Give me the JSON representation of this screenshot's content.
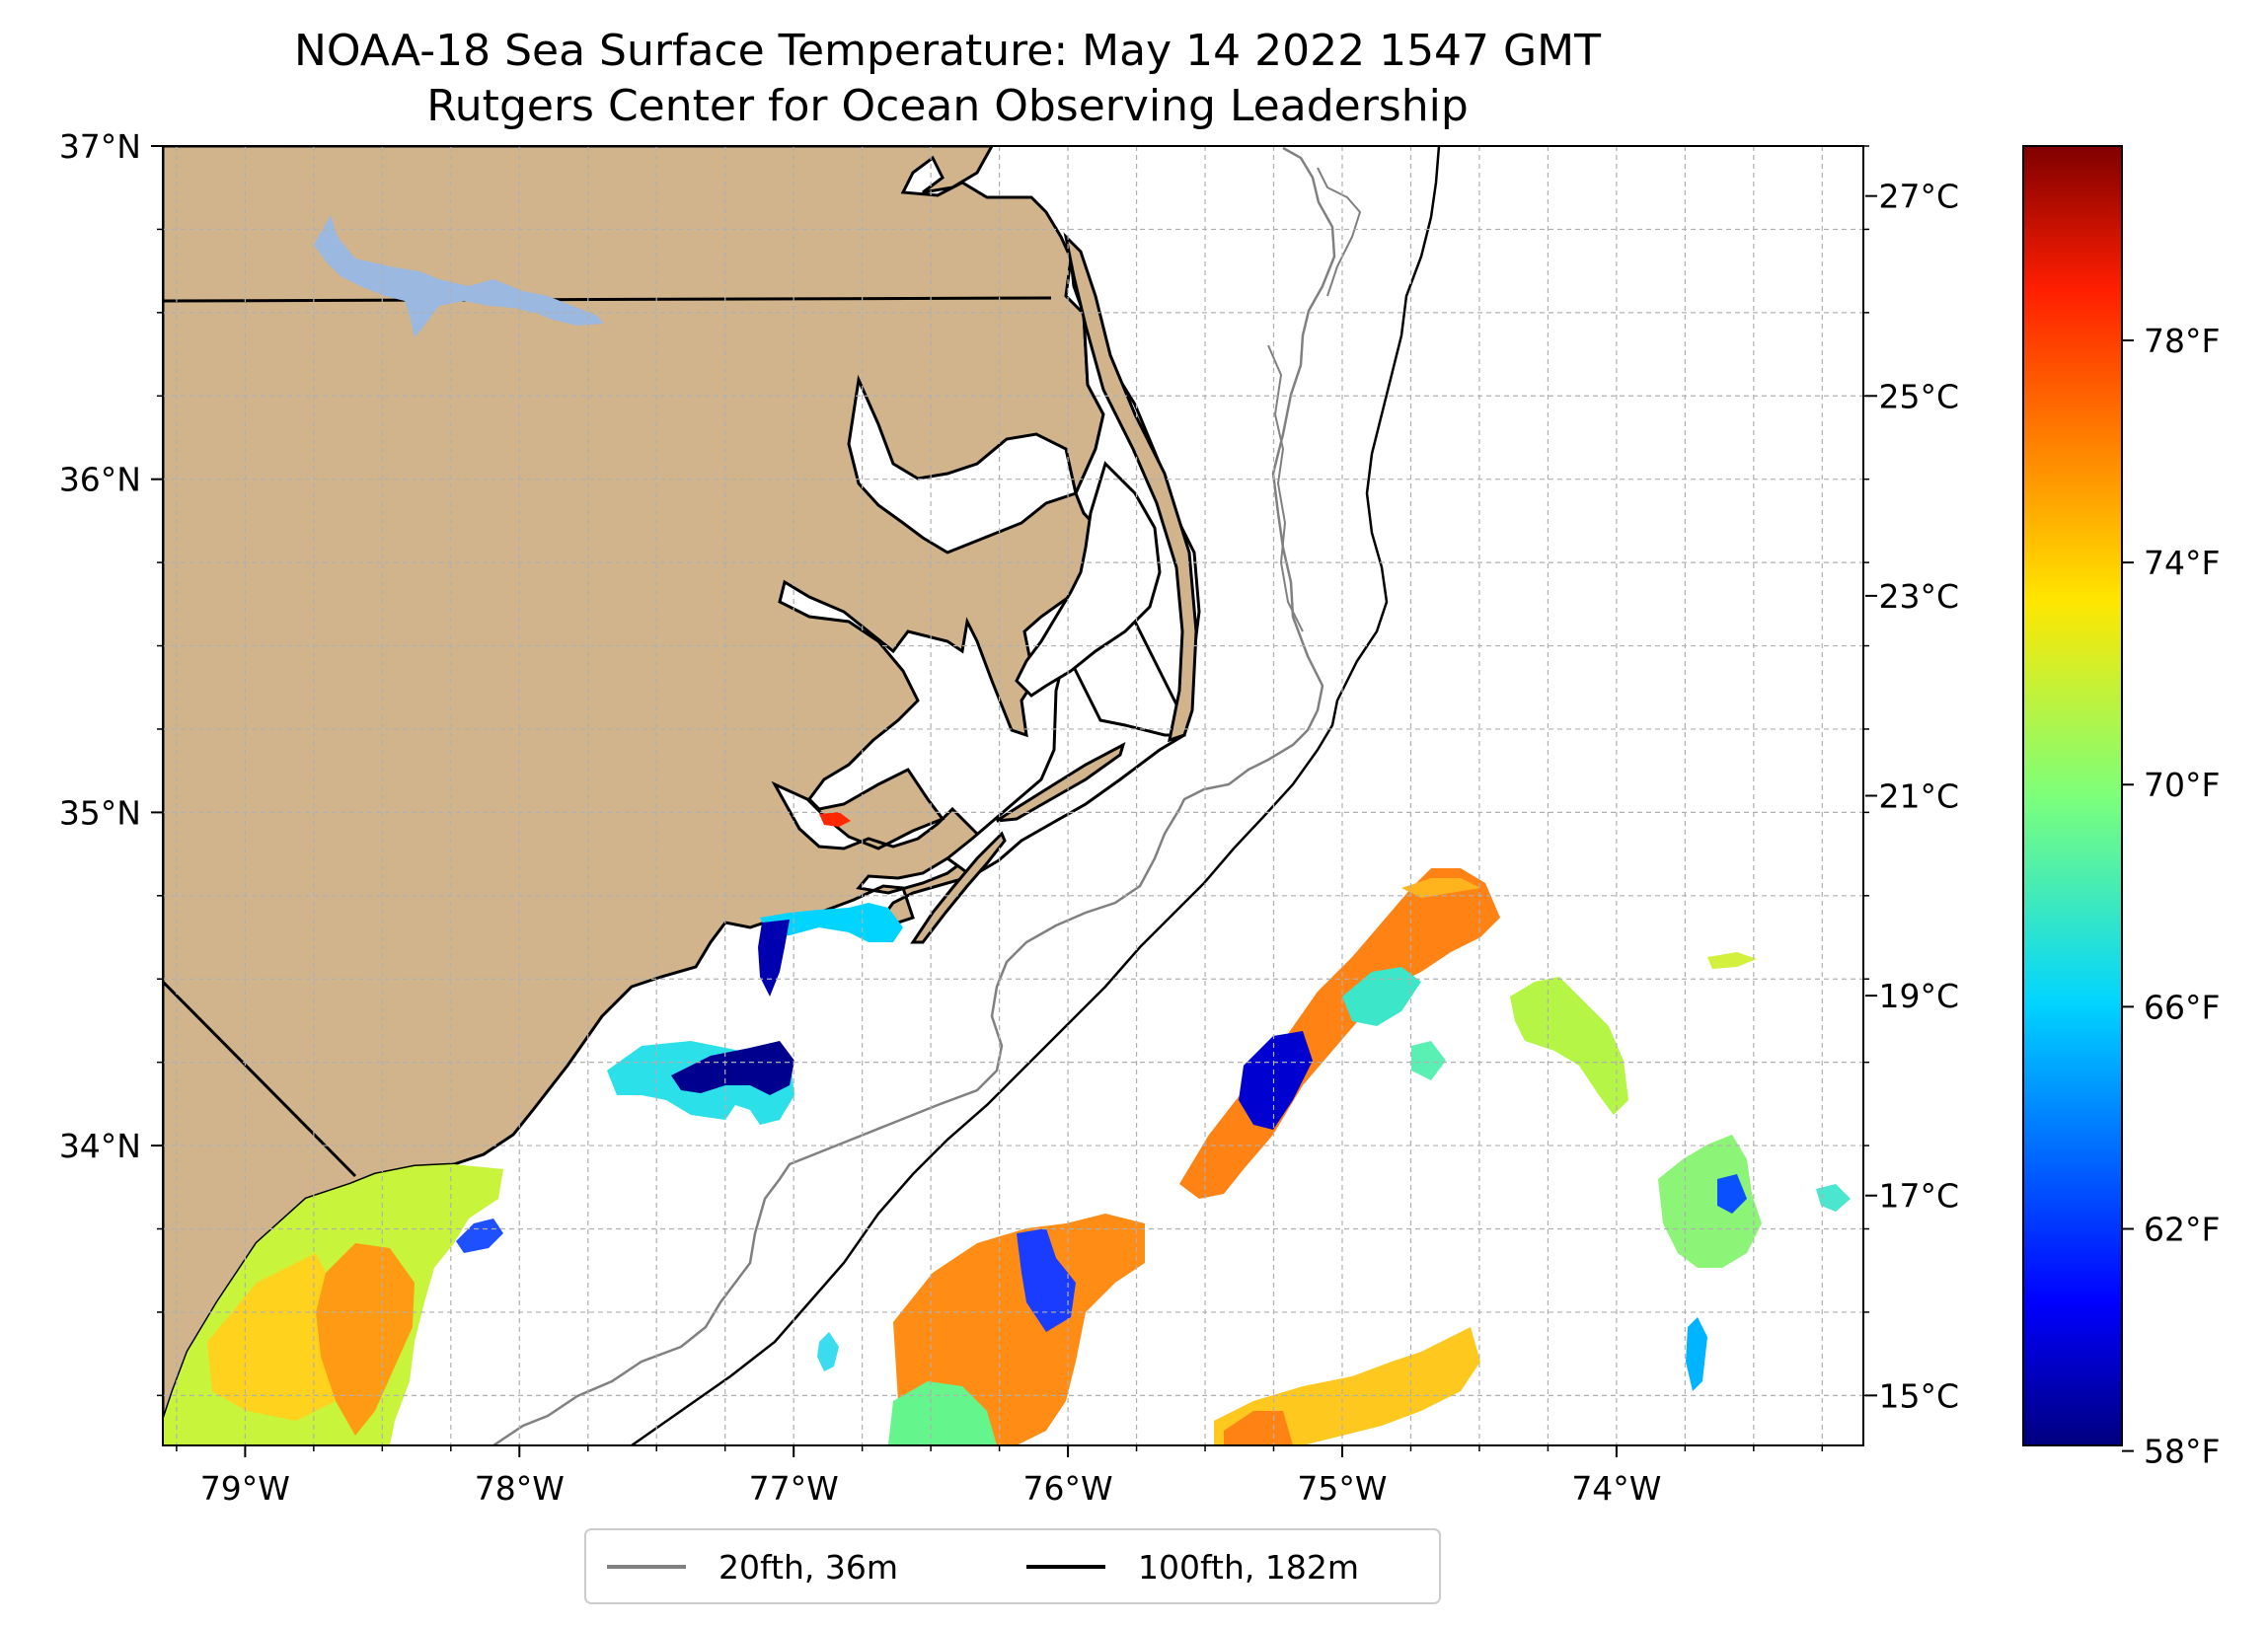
{
  "title": {
    "line1": "NOAA-18 Sea Surface Temperature: May 14 2022 1547 GMT",
    "line2": "Rutgers Center for Ocean Observing Leadership"
  },
  "map": {
    "lon_range": [
      -79.3,
      -73.1
    ],
    "lat_range": [
      33.1,
      37.0
    ],
    "lat_ticks": [
      {
        "value": 37,
        "label": "37°N"
      },
      {
        "value": 36,
        "label": "36°N"
      },
      {
        "value": 35,
        "label": "35°N"
      },
      {
        "value": 34,
        "label": "34°N"
      }
    ],
    "lon_ticks": [
      {
        "value": -79,
        "label": "79°W"
      },
      {
        "value": -78,
        "label": "78°W"
      },
      {
        "value": -77,
        "label": "77°W"
      },
      {
        "value": -76,
        "label": "76°W"
      },
      {
        "value": -75,
        "label": "75°W"
      },
      {
        "value": -74,
        "label": "74°W"
      }
    ],
    "gridlines": true,
    "land_color": "#d2b48c",
    "lake_color": "#9ab8e0"
  },
  "legend": {
    "placement": "bottom-center",
    "items": [
      {
        "label": "20fth, 36m",
        "color": "#808080"
      },
      {
        "label": "100fth, 182m",
        "color": "#000000"
      }
    ]
  },
  "colorbar": {
    "colormap": "jet",
    "range_c": [
      14.5,
      27.5
    ],
    "celsius_ticks": [
      {
        "value": 27,
        "label": "27°C"
      },
      {
        "value": 25,
        "label": "25°C"
      },
      {
        "value": 23,
        "label": "23°C"
      },
      {
        "value": 21,
        "label": "21°C"
      },
      {
        "value": 19,
        "label": "19°C"
      },
      {
        "value": 17,
        "label": "17°C"
      },
      {
        "value": 15,
        "label": "15°C"
      }
    ],
    "fahrenheit_ticks": [
      {
        "value": 78,
        "label": "78°F"
      },
      {
        "value": 74,
        "label": "74°F"
      },
      {
        "value": 70,
        "label": "70°F"
      },
      {
        "value": 66,
        "label": "66°F"
      },
      {
        "value": 62,
        "label": "62°F"
      },
      {
        "value": 58,
        "label": "58°F"
      }
    ]
  }
}
